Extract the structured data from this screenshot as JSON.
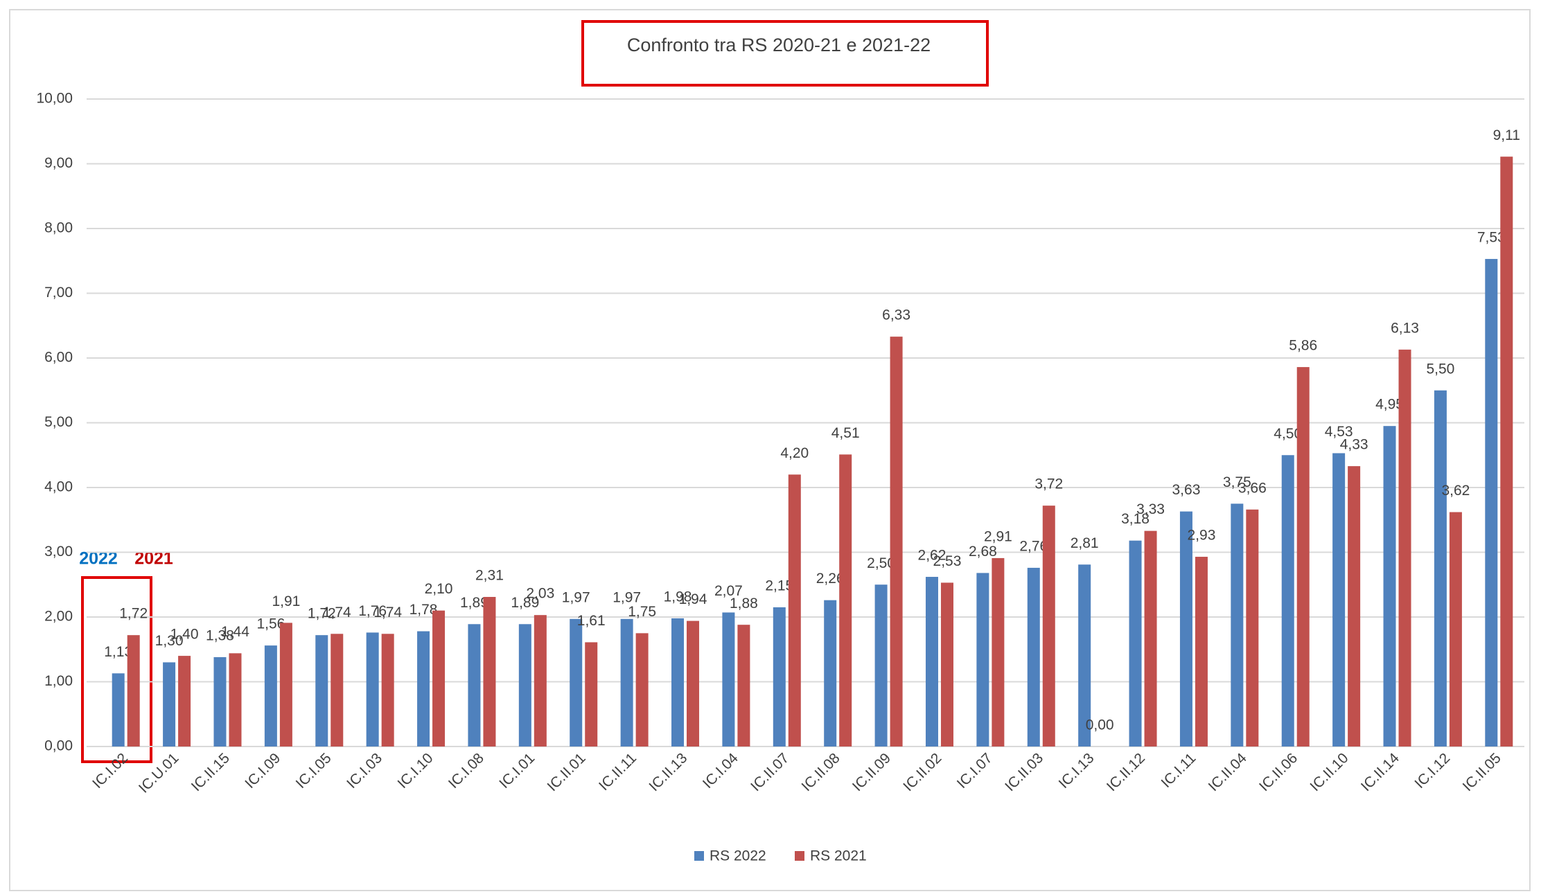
{
  "chart_data": {
    "type": "bar",
    "title": "Confronto tra RS 2020-21 e 2021-22",
    "categories": [
      "IC.I.02",
      "IC.U.01",
      "IC.II.15",
      "IC.I.09",
      "IC.I.05",
      "IC.I.03",
      "IC.I.10",
      "IC.I.08",
      "IC.I.01",
      "IC.II.01",
      "IC.II.11",
      "IC.II.13",
      "IC.I.04",
      "IC.II.07",
      "IC.II.08",
      "IC.II.09",
      "IC.II.02",
      "IC.I.07",
      "IC.II.03",
      "IC.I.13",
      "IC.II.12",
      "IC.I.11",
      "IC.II.04",
      "IC.II.06",
      "IC.II.10",
      "IC.II.14",
      "IC.I.12",
      "IC.II.05"
    ],
    "series": [
      {
        "name": "RS 2022",
        "color": "#4f81bd",
        "values": [
          1.13,
          1.3,
          1.38,
          1.56,
          1.72,
          1.76,
          1.78,
          1.89,
          1.89,
          1.97,
          1.97,
          1.98,
          2.07,
          2.15,
          2.26,
          2.5,
          2.62,
          2.68,
          2.76,
          2.81,
          3.18,
          3.63,
          3.75,
          4.5,
          4.53,
          4.95,
          5.5,
          7.53
        ],
        "value_labels": [
          "1,13",
          "1,30",
          "1,38",
          "1,56",
          "1,72",
          "1,76",
          "1,78",
          "1,89",
          "1,89",
          "1,97",
          "1,97",
          "1,98",
          "2,07",
          "2,15",
          "2,26",
          "2,50",
          "2,62",
          "2,68",
          "2,76",
          "2,81",
          "3,18",
          "3,63",
          "3,75",
          "4,50",
          "4,53",
          "4,95",
          "5,50",
          "7,53"
        ]
      },
      {
        "name": "RS 2021",
        "color": "#c0504d",
        "values": [
          1.72,
          1.4,
          1.44,
          1.91,
          1.74,
          1.74,
          2.1,
          2.31,
          2.03,
          1.61,
          1.75,
          1.94,
          1.88,
          4.2,
          4.51,
          6.33,
          2.53,
          2.91,
          3.72,
          0.0,
          3.33,
          2.93,
          3.66,
          5.86,
          4.33,
          6.13,
          3.62,
          9.11
        ],
        "value_labels": [
          "1,72",
          "1,40",
          "1,44",
          "1,91",
          "1,74",
          "1,74",
          "2,10",
          "2,31",
          "2,03",
          "1,61",
          "1,75",
          "1,94",
          "1,88",
          "4,20",
          "4,51",
          "6,33",
          "2,53",
          "2,91",
          "3,72",
          "0,00",
          "3,33",
          "2,93",
          "3,66",
          "5,86",
          "4,33",
          "6,13",
          "3,62",
          "9,11"
        ]
      }
    ],
    "ylim": [
      0,
      10
    ],
    "yticks": [
      {
        "value": 0,
        "label": "0,00"
      },
      {
        "value": 1,
        "label": "1,00"
      },
      {
        "value": 2,
        "label": "2,00"
      },
      {
        "value": 3,
        "label": "3,00"
      },
      {
        "value": 4,
        "label": "4,00"
      },
      {
        "value": 5,
        "label": "5,00"
      },
      {
        "value": 6,
        "label": "6,00"
      },
      {
        "value": 7,
        "label": "7,00"
      },
      {
        "value": 8,
        "label": "8,00"
      },
      {
        "value": 9,
        "label": "9,00"
      },
      {
        "value": 10,
        "label": "10,00"
      }
    ],
    "grid": true,
    "legend": "bottom",
    "annotations": [
      "2022",
      "2021"
    ]
  }
}
